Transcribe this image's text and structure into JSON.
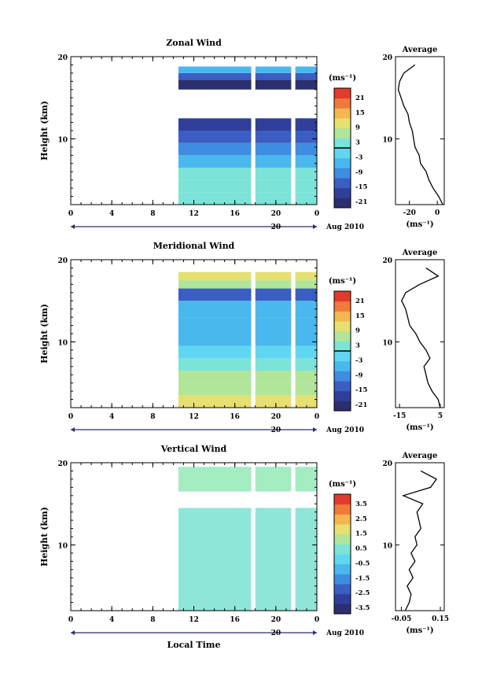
{
  "colors": {
    "scale": [
      "#2b2f70",
      "#2f3f9a",
      "#3a5ec2",
      "#3f8de0",
      "#49b8ee",
      "#5fd7f1",
      "#7ce3d8",
      "#b0e59a",
      "#e6e070",
      "#f4b650",
      "#f07a3a",
      "#e23b2c"
    ],
    "vertical_fill": "#8fe6d8",
    "vertical_fill_alt": "#a4ecc2"
  },
  "panels": [
    {
      "title": "Zonal Wind",
      "y_label": "Height (km)",
      "x_ticks": [
        "0",
        "4",
        "8",
        "12",
        "16",
        "20",
        "0"
      ],
      "y_ticks": [
        "20",
        "10"
      ],
      "date_day": "20",
      "date_text": "Aug 2010",
      "colorbar_unit": "(ms⁻¹)",
      "colorbar_labels": [
        "21",
        "15",
        "9",
        "3",
        "-3",
        "-9",
        "-15",
        "-21"
      ],
      "avg_title": "Average",
      "avg_y_ticks": [
        "20",
        "10"
      ],
      "avg_x_ticks": [
        "-20",
        "0"
      ],
      "avg_unit": "(ms⁻¹)"
    },
    {
      "title": "Meridional Wind",
      "y_label": "Height (km)",
      "x_ticks": [
        "0",
        "4",
        "8",
        "12",
        "16",
        "20",
        "0"
      ],
      "y_ticks": [
        "20",
        "10"
      ],
      "date_day": "20",
      "date_text": "Aug 2010",
      "colorbar_unit": "(ms⁻¹)",
      "colorbar_labels": [
        "21",
        "15",
        "9",
        "3",
        "-3",
        "-9",
        "-15",
        "-21"
      ],
      "avg_title": "Average",
      "avg_y_ticks": [
        "20",
        "10"
      ],
      "avg_x_ticks": [
        "-15",
        "5"
      ],
      "avg_unit": "(ms⁻¹)"
    },
    {
      "title": "Vertical Wind",
      "y_label": "Height (km)",
      "x_ticks": [
        "0",
        "4",
        "8",
        "12",
        "16",
        "20",
        "0"
      ],
      "y_ticks": [
        "20",
        "10"
      ],
      "date_day": "20",
      "date_text": "Aug 2010",
      "colorbar_unit": "(ms⁻¹)",
      "colorbar_labels": [
        "3.5",
        "2.5",
        "1.5",
        "0.5",
        "-0.5",
        "-1.5",
        "-2.5",
        "-3.5"
      ],
      "avg_title": "Average",
      "avg_y_ticks": [
        "20",
        "10"
      ],
      "avg_x_ticks": [
        "-0.05",
        "0.15"
      ],
      "avg_unit": "(ms⁻¹)"
    }
  ],
  "x_axis_title": "Local Time",
  "chart_data": [
    {
      "type": "heatmap",
      "title": "Zonal Wind",
      "xlabel": "",
      "ylabel": "Height (km)",
      "xlim": [
        0,
        24
      ],
      "ylim": [
        2,
        20
      ],
      "data_start_hour": 10.5,
      "gaps_hours": [
        [
          17.6,
          18.0
        ],
        [
          21.5,
          21.9
        ]
      ],
      "bands": [
        {
          "z0": 2,
          "z1": 3.5,
          "value": 3
        },
        {
          "z0": 3.5,
          "z1": 5,
          "value": 2
        },
        {
          "z0": 5,
          "z1": 6.5,
          "value": 0
        },
        {
          "z0": 6.5,
          "z1": 8,
          "value": -5
        },
        {
          "z0": 8,
          "z1": 9.5,
          "value": -8
        },
        {
          "z0": 9.5,
          "z1": 11,
          "value": -12
        },
        {
          "z0": 11,
          "z1": 12.5,
          "value": -17
        },
        {
          "z0": 16,
          "z1": 17.2,
          "value": -21
        },
        {
          "z0": 17.2,
          "z1": 18,
          "value": -14
        },
        {
          "z0": 18,
          "z1": 18.8,
          "value": -7
        }
      ],
      "colorbar_range": [
        -21,
        21
      ],
      "average_profile": {
        "xlim": [
          -30,
          5
        ],
        "height": [
          2,
          3,
          4,
          5,
          6,
          7,
          8,
          9,
          10,
          11,
          12,
          13,
          14,
          15,
          16,
          17,
          18,
          19
        ],
        "value": [
          4,
          1,
          -3,
          -6,
          -8,
          -12,
          -13,
          -16,
          -17,
          -18,
          -20,
          -21,
          -24,
          -26,
          -28,
          -27,
          -24,
          -16
        ]
      }
    },
    {
      "type": "heatmap",
      "title": "Meridional Wind",
      "xlabel": "",
      "ylabel": "Height (km)",
      "xlim": [
        0,
        24
      ],
      "ylim": [
        2,
        20
      ],
      "data_start_hour": 10.5,
      "gaps_hours": [
        [
          17.6,
          18.0
        ],
        [
          21.5,
          21.9
        ]
      ],
      "bands": [
        {
          "z0": 2,
          "z1": 3.5,
          "value": 8
        },
        {
          "z0": 3.5,
          "z1": 5,
          "value": 6
        },
        {
          "z0": 5,
          "z1": 6.5,
          "value": 4
        },
        {
          "z0": 6.5,
          "z1": 8,
          "value": 1
        },
        {
          "z0": 8,
          "z1": 9.5,
          "value": -1
        },
        {
          "z0": 9.5,
          "z1": 11,
          "value": -4
        },
        {
          "z0": 11,
          "z1": 13,
          "value": -7
        },
        {
          "z0": 13,
          "z1": 15,
          "value": -5
        },
        {
          "z0": 15,
          "z1": 16.5,
          "value": -11
        },
        {
          "z0": 16.5,
          "z1": 17.5,
          "value": 6
        },
        {
          "z0": 17.5,
          "z1": 18.5,
          "value": 10
        }
      ],
      "colorbar_range": [
        -21,
        21
      ],
      "average_profile": {
        "xlim": [
          -17,
          7
        ],
        "height": [
          2,
          3,
          4,
          5,
          6,
          7,
          8,
          9,
          10,
          11,
          12,
          13,
          14,
          15,
          16,
          17,
          18,
          19
        ],
        "value": [
          5,
          4,
          1,
          -1,
          -2,
          -3,
          0,
          -2,
          -5,
          -7,
          -10,
          -11,
          -12,
          -14,
          -12,
          -5,
          4,
          -2
        ]
      }
    },
    {
      "type": "heatmap",
      "title": "Vertical Wind",
      "xlabel": "Local Time",
      "ylabel": "Height (km)",
      "xlim": [
        0,
        24
      ],
      "ylim": [
        2,
        20
      ],
      "data_start_hour": 10.5,
      "gaps_hours": [
        [
          17.6,
          18.0
        ],
        [
          21.5,
          21.9
        ]
      ],
      "bands": [
        {
          "z0": 2,
          "z1": 14.5,
          "value": 0
        },
        {
          "z0": 16.5,
          "z1": 19.5,
          "value": 0
        }
      ],
      "colorbar_range": [
        -3.5,
        3.5
      ],
      "average_profile": {
        "xlim": [
          -0.08,
          0.17
        ],
        "height": [
          2,
          3,
          4,
          5,
          6,
          7,
          8,
          9,
          10,
          11,
          12,
          13,
          14,
          15,
          16,
          17,
          18,
          19
        ],
        "value": [
          -0.03,
          -0.01,
          0.0,
          -0.02,
          0.01,
          -0.01,
          0.02,
          0.0,
          0.03,
          0.02,
          0.05,
          0.04,
          0.03,
          0.06,
          -0.04,
          0.1,
          0.13,
          0.05
        ]
      }
    }
  ]
}
